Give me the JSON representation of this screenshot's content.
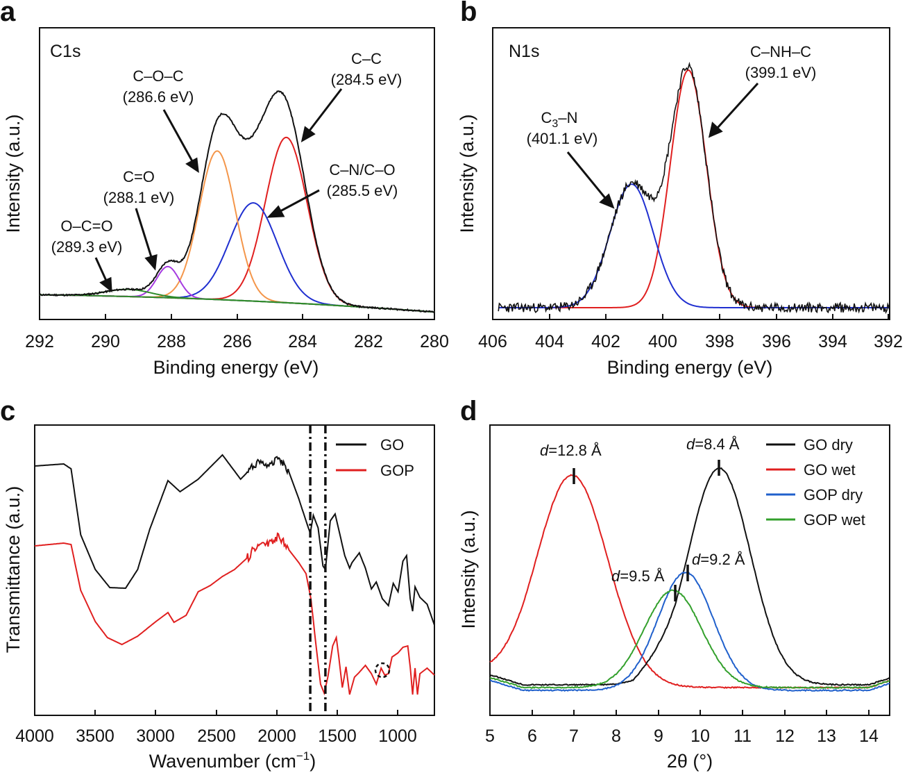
{
  "figure": {
    "colors": {
      "black": "#111111",
      "red": "#e01f1f",
      "blue": "#1f2fd0",
      "orange": "#f4964a",
      "purple": "#a53be0",
      "green": "#2e8b2a",
      "xrd_blue": "#2060cc",
      "xrd_green": "#33a02c"
    }
  },
  "chart_data": [
    {
      "id": "a",
      "panel_label": "a",
      "type": "line",
      "inset_label": "C1s",
      "xlabel": "Binding energy (eV)",
      "ylabel": "Intensity (a.u.)",
      "xlim": [
        292,
        280
      ],
      "xticks": [
        "292",
        "290",
        "288",
        "286",
        "284",
        "282",
        "280"
      ],
      "peaks": [
        {
          "name": "C–C",
          "center_ev": 284.5,
          "fwhm_ev": 1.5,
          "height": 0.69,
          "color": "red"
        },
        {
          "name": "C–N/C–O",
          "center_ev": 285.5,
          "fwhm_ev": 1.7,
          "height": 0.41,
          "color": "blue"
        },
        {
          "name": "C–O–C",
          "center_ev": 286.6,
          "fwhm_ev": 1.3,
          "height": 0.62,
          "color": "orange"
        },
        {
          "name": "C=O",
          "center_ev": 288.1,
          "fwhm_ev": 0.8,
          "height": 0.13,
          "color": "purple"
        },
        {
          "name": "O–C=O",
          "center_ev": 289.3,
          "fwhm_ev": 1.6,
          "height": 0.03,
          "color": "green"
        }
      ],
      "annotations": [
        {
          "name": "C–C",
          "energy": "(284.5 eV)"
        },
        {
          "name": "C–O–C",
          "energy": "(286.6 eV)"
        },
        {
          "name": "C–N/C–O",
          "energy": "(285.5 eV)"
        },
        {
          "name": "C=O",
          "energy": "(288.1 eV)"
        },
        {
          "name": "O–C=O",
          "energy": "(289.3 eV)"
        }
      ]
    },
    {
      "id": "b",
      "panel_label": "b",
      "type": "line",
      "inset_label": "N1s",
      "xlabel": "Binding energy (eV)",
      "ylabel": "Intensity (a.u.)",
      "xlim": [
        406,
        392
      ],
      "xticks": [
        "406",
        "404",
        "402",
        "400",
        "398",
        "396",
        "394",
        "392"
      ],
      "peaks": [
        {
          "name": "C–NH–C",
          "center_ev": 399.1,
          "fwhm_ev": 1.5,
          "height": 1.0,
          "color": "red"
        },
        {
          "name": "C3–N",
          "center_ev": 401.1,
          "fwhm_ev": 1.8,
          "height": 0.52,
          "color": "blue"
        }
      ],
      "annotations": [
        {
          "name": "C–NH–C",
          "energy": "(399.1 eV)"
        },
        {
          "name_main": "C",
          "name_sub": "3",
          "name_rest": "–N",
          "energy": "(401.1 eV)"
        }
      ]
    },
    {
      "id": "c",
      "panel_label": "c",
      "type": "line",
      "xlabel_main": "Wavenumber (cm",
      "xlabel_sup": "−1",
      "xlabel_end": ")",
      "ylabel": "Transmittance (a.u.)",
      "xlim": [
        4000,
        700
      ],
      "xticks": [
        "4000",
        "3500",
        "3000",
        "2500",
        "2000",
        "1500",
        "1000"
      ],
      "reference_lines_cm": [
        1725,
        1600
      ],
      "series": [
        {
          "name": "GO",
          "color": "black"
        },
        {
          "name": "GOP",
          "color": "red"
        }
      ]
    },
    {
      "id": "d",
      "panel_label": "d",
      "type": "line",
      "xlabel": "2θ (°)",
      "ylabel": "Intensity (a.u.)",
      "xlim": [
        5,
        14.5
      ],
      "xticks": [
        "5",
        "6",
        "7",
        "8",
        "9",
        "10",
        "11",
        "12",
        "13",
        "14"
      ],
      "series": [
        {
          "name": "GO dry",
          "color": "black",
          "peak_2theta": 10.45,
          "d_spacing": "=8.4 Å"
        },
        {
          "name": "GO wet",
          "color": "red",
          "peak_2theta": 6.95,
          "d_spacing": "=12.8 Å"
        },
        {
          "name": "GOP dry",
          "color": "blue",
          "peak_2theta": 9.65,
          "d_spacing": "=9.2 Å"
        },
        {
          "name": "GOP wet",
          "color": "green",
          "peak_2theta": 9.35,
          "d_spacing": "=9.5 Å"
        }
      ]
    }
  ]
}
